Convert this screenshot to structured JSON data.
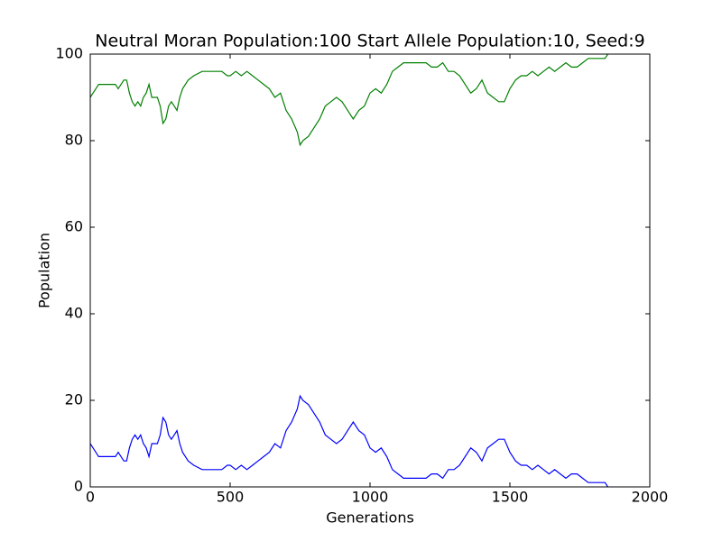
{
  "chart_data": {
    "type": "line",
    "title": "Neutral Moran Population:100 Start Allele Population:10, Seed:9",
    "x_label": "Generations",
    "y_label": "Population",
    "x": [
      0,
      10,
      20,
      30,
      50,
      70,
      90,
      100,
      110,
      120,
      130,
      140,
      150,
      160,
      170,
      180,
      190,
      200,
      210,
      220,
      240,
      250,
      260,
      270,
      280,
      290,
      300,
      310,
      320,
      330,
      350,
      370,
      400,
      450,
      470,
      490,
      500,
      520,
      540,
      560,
      580,
      600,
      620,
      640,
      660,
      680,
      700,
      720,
      740,
      750,
      760,
      780,
      800,
      820,
      840,
      860,
      880,
      900,
      920,
      940,
      960,
      980,
      1000,
      1020,
      1040,
      1060,
      1080,
      1100,
      1120,
      1140,
      1160,
      1180,
      1200,
      1220,
      1240,
      1260,
      1280,
      1300,
      1320,
      1340,
      1360,
      1380,
      1400,
      1420,
      1440,
      1460,
      1480,
      1500,
      1520,
      1540,
      1560,
      1580,
      1600,
      1620,
      1640,
      1660,
      1680,
      1700,
      1720,
      1740,
      1760,
      1780,
      1800,
      1820,
      1840,
      1850
    ],
    "series": [
      {
        "color": "#0000ff",
        "values": [
          10,
          9,
          8,
          7,
          7,
          7,
          7,
          8,
          7,
          6,
          6,
          9,
          11,
          12,
          11,
          12,
          10,
          9,
          7,
          10,
          10,
          12,
          16,
          15,
          12,
          11,
          12,
          13,
          10,
          8,
          6,
          5,
          4,
          4,
          4,
          5,
          5,
          4,
          5,
          4,
          5,
          6,
          7,
          8,
          10,
          9,
          13,
          15,
          18,
          21,
          20,
          19,
          17,
          15,
          12,
          11,
          10,
          11,
          13,
          15,
          13,
          12,
          9,
          8,
          9,
          7,
          4,
          3,
          2,
          2,
          2,
          2,
          2,
          3,
          3,
          2,
          4,
          4,
          5,
          7,
          9,
          8,
          6,
          9,
          10,
          11,
          11,
          8,
          6,
          5,
          5,
          4,
          5,
          4,
          3,
          4,
          3,
          2,
          3,
          3,
          2,
          1,
          1,
          1,
          1,
          0
        ]
      },
      {
        "color": "#008000",
        "values": [
          90,
          91,
          92,
          93,
          93,
          93,
          93,
          92,
          93,
          94,
          94,
          91,
          89,
          88,
          89,
          88,
          90,
          91,
          93,
          90,
          90,
          88,
          84,
          85,
          88,
          89,
          88,
          87,
          90,
          92,
          94,
          95,
          96,
          96,
          96,
          95,
          95,
          96,
          95,
          96,
          95,
          94,
          93,
          92,
          90,
          91,
          87,
          85,
          82,
          79,
          80,
          81,
          83,
          85,
          88,
          89,
          90,
          89,
          87,
          85,
          87,
          88,
          91,
          92,
          91,
          93,
          96,
          97,
          98,
          98,
          98,
          98,
          98,
          97,
          97,
          98,
          96,
          96,
          95,
          93,
          91,
          92,
          94,
          91,
          90,
          89,
          89,
          92,
          94,
          95,
          95,
          96,
          95,
          96,
          97,
          96,
          97,
          98,
          97,
          97,
          98,
          99,
          99,
          99,
          99,
          100
        ]
      }
    ],
    "xlim": [
      0,
      2000
    ],
    "ylim": [
      0,
      100
    ],
    "xticks": [
      0,
      500,
      1000,
      1500,
      2000
    ],
    "yticks": [
      0,
      20,
      40,
      60,
      80,
      100
    ]
  }
}
